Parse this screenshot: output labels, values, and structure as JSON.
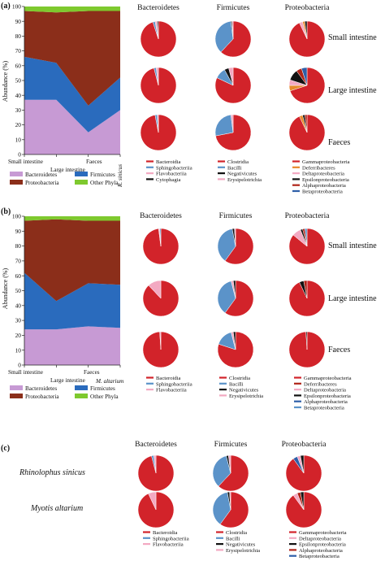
{
  "colors": {
    "Bacteroidetes": "#c79ad4",
    "Proteobacteria": "#8b2e1a",
    "Firmicutes": "#2a6bbd",
    "Other Phyla": "#7ec92e",
    "red": "#d2232a",
    "lightblue": "#5b93c9",
    "pink": "#f3a9c2",
    "black": "#111111",
    "orange": "#e88a2c",
    "darkred": "#b02418",
    "dblue": "#2e5fa8"
  },
  "panels": [
    {
      "id": "a",
      "label": "(a)",
      "ylabel": "Abundance (%)",
      "yticks": [
        "0",
        "10",
        "20",
        "30",
        "40",
        "50",
        "60",
        "70",
        "80",
        "90",
        "100"
      ],
      "xlabels": [
        "Small intestine",
        "Large intestine",
        "Faeces",
        "R. sinicus"
      ],
      "area_legend": [
        "Bacteroidetes",
        "Firmicutes",
        "Proteobacteria",
        "Other Phyla"
      ],
      "col_titles": [
        "Bacteroidetes",
        "Firmicutes",
        "Proteobacteria"
      ],
      "row_labels": [
        "Small intestine",
        "Large intestine",
        "Faeces"
      ],
      "pie_legends": [
        [
          {
            "label": "Bacteroidia",
            "color": "red"
          },
          {
            "label": "Sphingobacteriia",
            "color": "lightblue"
          },
          {
            "label": "Flavobacteriia",
            "color": "pink"
          },
          {
            "label": "Cytophagia",
            "color": "black"
          }
        ],
        [
          {
            "label": "Clostridia",
            "color": "red"
          },
          {
            "label": "Bacilli",
            "color": "lightblue"
          },
          {
            "label": "Negativicutes",
            "color": "black"
          },
          {
            "label": "Erysipelotrichia",
            "color": "pink"
          }
        ],
        [
          {
            "label": "Gammaproteobacteria",
            "color": "red"
          },
          {
            "label": "Deferribacteres",
            "color": "orange"
          },
          {
            "label": "Deltaproteobacteria",
            "color": "pink"
          },
          {
            "label": "Epsilonproteobacteria",
            "color": "black"
          },
          {
            "label": "Alphaproteobacteria",
            "color": "darkred"
          },
          {
            "label": "Betaproteobacteria",
            "color": "dblue"
          }
        ]
      ]
    },
    {
      "id": "b",
      "label": "(b)",
      "ylabel": "Abundance (%)",
      "yticks": [
        "0",
        "10",
        "20",
        "30",
        "40",
        "50",
        "60",
        "70",
        "80",
        "90",
        "100"
      ],
      "xlabels": [
        "Small intestine",
        "Large intestine",
        "Faeces",
        "M. altarium"
      ],
      "area_legend": [
        "Bacteroidetes",
        "Firmicutes",
        "Proteobacteria",
        "Other Phyla"
      ],
      "col_titles": [
        "Bacteroidetes",
        "Firmicutes",
        "Proteobacteria"
      ],
      "row_labels": [
        "Small intestine",
        "Large intestine",
        "Faeces"
      ],
      "pie_legends": [
        [
          {
            "label": "Bacteroidia",
            "color": "red"
          },
          {
            "label": "Sphingobacteriia",
            "color": "lightblue"
          },
          {
            "label": "Flavobacteriia",
            "color": "pink"
          }
        ],
        [
          {
            "label": "Clostridia",
            "color": "red"
          },
          {
            "label": "Bacilli",
            "color": "lightblue"
          },
          {
            "label": "Negativicutes",
            "color": "black"
          },
          {
            "label": "Erysipelotrichia",
            "color": "pink"
          }
        ],
        [
          {
            "label": "Gammaproteobacteria",
            "color": "red"
          },
          {
            "label": "Deferribacteres",
            "color": "darkred"
          },
          {
            "label": "Deltaproteobacteria",
            "color": "pink"
          },
          {
            "label": "Epsilonproteobacteria",
            "color": "black"
          },
          {
            "label": "Alphaproteobacteria",
            "color": "dblue"
          },
          {
            "label": "Betaproteobacteria",
            "color": "lightblue"
          }
        ]
      ]
    },
    {
      "id": "c",
      "label": "(c)",
      "col_titles": [
        "Bacteroidetes",
        "Firmicutes",
        "Proteobacteria"
      ],
      "row_labels": [
        "Rhinolophus sinicus",
        "Myotis altarium"
      ],
      "pie_legends": [
        [
          {
            "label": "Bacteroidia",
            "color": "red"
          },
          {
            "label": "Sphingobacteriia",
            "color": "lightblue"
          },
          {
            "label": "Flavobacteriia",
            "color": "pink"
          }
        ],
        [
          {
            "label": "Clostridia",
            "color": "red"
          },
          {
            "label": "Bacilli",
            "color": "lightblue"
          },
          {
            "label": "Negativicutes",
            "color": "black"
          },
          {
            "label": "Erysipelotrichia",
            "color": "pink"
          }
        ],
        [
          {
            "label": "Gammaproteobacteria",
            "color": "red"
          },
          {
            "label": "Deltaproteobacteria",
            "color": "pink"
          },
          {
            "label": "Epsilonproteobacteria",
            "color": "black"
          },
          {
            "label": "Alphaproteobacteria",
            "color": "darkred"
          },
          {
            "label": "Betaproteobacteria",
            "color": "dblue"
          }
        ]
      ]
    }
  ],
  "chart_data": [
    {
      "type": "area",
      "panel": "a",
      "categories": [
        "Small intestine",
        "Large intestine",
        "Faeces",
        "R. sinicus"
      ],
      "ylim": [
        0,
        100
      ],
      "ylabel": "Abundance (%)",
      "series": [
        {
          "name": "Bacteroidetes",
          "values": [
            37,
            37,
            15,
            30
          ]
        },
        {
          "name": "Firmicutes",
          "values": [
            29,
            25,
            18,
            22
          ]
        },
        {
          "name": "Proteobacteria",
          "values": [
            31,
            34,
            64,
            45
          ]
        },
        {
          "name": "Other Phyla",
          "values": [
            3,
            4,
            3,
            3
          ]
        }
      ]
    },
    {
      "type": "pie",
      "panel": "a",
      "pies": [
        [
          [
            {
              "c": "red",
              "v": 95
            },
            {
              "c": "lightblue",
              "v": 2
            },
            {
              "c": "pink",
              "v": 2
            },
            {
              "c": "black",
              "v": 1
            }
          ],
          [
            {
              "c": "red",
              "v": 62
            },
            {
              "c": "lightblue",
              "v": 36
            },
            {
              "c": "black",
              "v": 1
            },
            {
              "c": "pink",
              "v": 1
            }
          ],
          [
            {
              "c": "red",
              "v": 93
            },
            {
              "c": "pink",
              "v": 3
            },
            {
              "c": "orange",
              "v": 2
            },
            {
              "c": "black",
              "v": 2
            }
          ]
        ],
        [
          [
            {
              "c": "red",
              "v": 96
            },
            {
              "c": "lightblue",
              "v": 2
            },
            {
              "c": "pink",
              "v": 2
            }
          ],
          [
            {
              "c": "red",
              "v": 82
            },
            {
              "c": "lightblue",
              "v": 10
            },
            {
              "c": "black",
              "v": 4
            },
            {
              "c": "pink",
              "v": 4
            }
          ],
          [
            {
              "c": "red",
              "v": 70
            },
            {
              "c": "orange",
              "v": 5
            },
            {
              "c": "pink",
              "v": 5
            },
            {
              "c": "black",
              "v": 10
            },
            {
              "c": "darkred",
              "v": 5
            },
            {
              "c": "dblue",
              "v": 5
            }
          ]
        ],
        [
          [
            {
              "c": "red",
              "v": 97
            },
            {
              "c": "lightblue",
              "v": 2
            },
            {
              "c": "pink",
              "v": 1
            }
          ],
          [
            {
              "c": "red",
              "v": 72
            },
            {
              "c": "lightblue",
              "v": 26
            },
            {
              "c": "pink",
              "v": 2
            }
          ],
          [
            {
              "c": "red",
              "v": 93
            },
            {
              "c": "orange",
              "v": 3
            },
            {
              "c": "black",
              "v": 2
            },
            {
              "c": "darkred",
              "v": 2
            }
          ]
        ]
      ]
    },
    {
      "type": "area",
      "panel": "b",
      "categories": [
        "Small intestine",
        "Large intestine",
        "Faeces",
        "M. altarium"
      ],
      "ylim": [
        0,
        100
      ],
      "ylabel": "Abundance (%)",
      "series": [
        {
          "name": "Bacteroidetes",
          "values": [
            24,
            24,
            26,
            25
          ]
        },
        {
          "name": "Firmicutes",
          "values": [
            38,
            19,
            29,
            29
          ]
        },
        {
          "name": "Proteobacteria",
          "values": [
            35,
            55,
            42,
            43
          ]
        },
        {
          "name": "Other Phyla",
          "values": [
            3,
            2,
            3,
            3
          ]
        }
      ]
    },
    {
      "type": "pie",
      "panel": "b",
      "pies": [
        [
          [
            {
              "c": "red",
              "v": 98
            },
            {
              "c": "pink",
              "v": 1
            },
            {
              "c": "lightblue",
              "v": 1
            }
          ],
          [
            {
              "c": "red",
              "v": 60
            },
            {
              "c": "lightblue",
              "v": 37
            },
            {
              "c": "black",
              "v": 2
            },
            {
              "c": "pink",
              "v": 1
            }
          ],
          [
            {
              "c": "red",
              "v": 86
            },
            {
              "c": "pink",
              "v": 8
            },
            {
              "c": "black",
              "v": 2
            },
            {
              "c": "darkred",
              "v": 2
            },
            {
              "c": "lightblue",
              "v": 2
            }
          ]
        ],
        [
          [
            {
              "c": "red",
              "v": 88
            },
            {
              "c": "pink",
              "v": 12
            }
          ],
          [
            {
              "c": "red",
              "v": 60
            },
            {
              "c": "lightblue",
              "v": 36
            },
            {
              "c": "pink",
              "v": 2
            },
            {
              "c": "black",
              "v": 2
            }
          ],
          [
            {
              "c": "red",
              "v": 93
            },
            {
              "c": "black",
              "v": 4
            },
            {
              "c": "darkred",
              "v": 3
            }
          ]
        ],
        [
          [
            {
              "c": "red",
              "v": 99
            },
            {
              "c": "pink",
              "v": 1
            }
          ],
          [
            {
              "c": "red",
              "v": 80
            },
            {
              "c": "lightblue",
              "v": 16
            },
            {
              "c": "pink",
              "v": 2
            },
            {
              "c": "black",
              "v": 2
            }
          ],
          [
            {
              "c": "red",
              "v": 99
            },
            {
              "c": "black",
              "v": 1
            }
          ]
        ]
      ]
    },
    {
      "type": "pie",
      "panel": "c",
      "pies": [
        [
          [
            {
              "c": "red",
              "v": 96
            },
            {
              "c": "lightblue",
              "v": 2
            },
            {
              "c": "pink",
              "v": 2
            }
          ],
          [
            {
              "c": "red",
              "v": 62
            },
            {
              "c": "lightblue",
              "v": 34
            },
            {
              "c": "black",
              "v": 2
            },
            {
              "c": "pink",
              "v": 2
            }
          ],
          [
            {
              "c": "red",
              "v": 90
            },
            {
              "c": "dblue",
              "v": 4
            },
            {
              "c": "pink",
              "v": 3
            },
            {
              "c": "black",
              "v": 3
            }
          ]
        ],
        [
          [
            {
              "c": "red",
              "v": 93
            },
            {
              "c": "pink",
              "v": 7
            }
          ],
          [
            {
              "c": "red",
              "v": 60
            },
            {
              "c": "lightblue",
              "v": 37
            },
            {
              "c": "black",
              "v": 2
            },
            {
              "c": "pink",
              "v": 1
            }
          ],
          [
            {
              "c": "red",
              "v": 90
            },
            {
              "c": "pink",
              "v": 4
            },
            {
              "c": "darkred",
              "v": 3
            },
            {
              "c": "black",
              "v": 3
            }
          ]
        ]
      ]
    }
  ]
}
